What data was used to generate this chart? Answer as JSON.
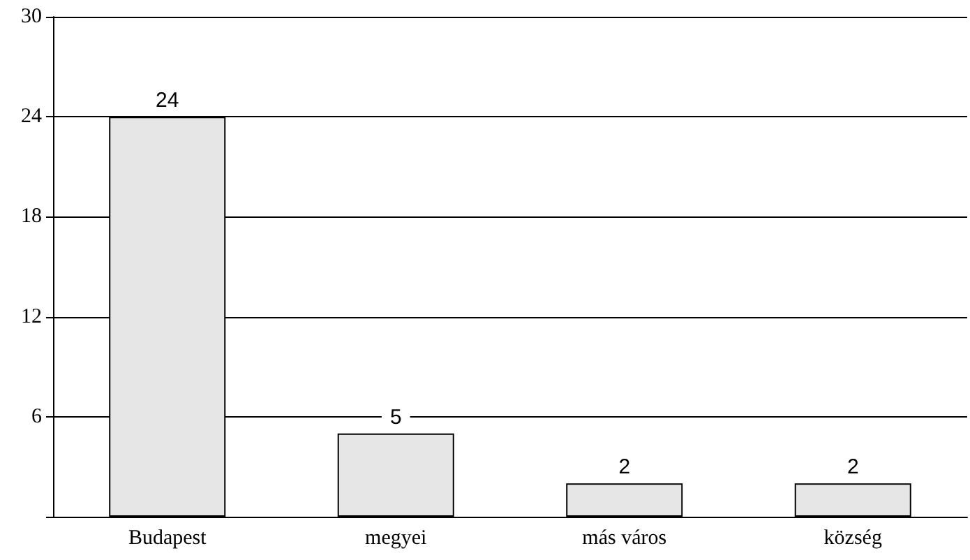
{
  "chart_data": {
    "type": "bar",
    "categories": [
      "Budapest",
      "megyei",
      "más város",
      "község"
    ],
    "values": [
      24,
      5,
      2,
      2
    ],
    "color": "#e6e6e6",
    "ylim": [
      0,
      30
    ],
    "yticks": [
      {
        "value": 0,
        "label": null
      },
      6,
      12,
      18,
      24,
      30
    ],
    "grid": "y",
    "data_labels": true
  }
}
